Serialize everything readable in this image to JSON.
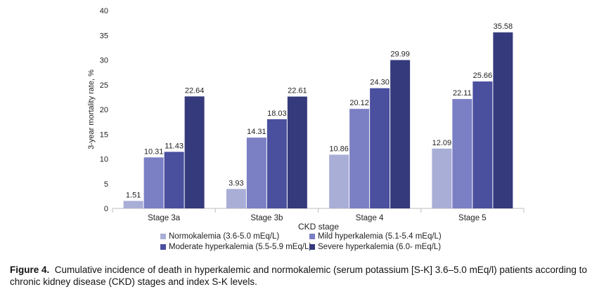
{
  "chart_data": {
    "type": "bar",
    "xlabel": "CKD stage",
    "ylabel": "3-year mortality rate, %",
    "ylim": [
      0,
      40
    ],
    "yticks": [
      0,
      5,
      10,
      15,
      20,
      25,
      30,
      35,
      40
    ],
    "grid": false,
    "legend_position": "bottom",
    "categories": [
      "Stage 3a",
      "Stage 3b",
      "Stage 4",
      "Stage 5"
    ],
    "series": [
      {
        "name": "Normokalemia (3.6-5.0 mEq/L)",
        "color": "#a9aed6",
        "values": [
          1.51,
          3.93,
          10.86,
          12.09
        ],
        "labels": [
          "1.51",
          "3.93",
          "10.86",
          "12.09"
        ]
      },
      {
        "name": "Mild hyperkalemia (5.1-5.4 mEq/L)",
        "color": "#7b7fc4",
        "values": [
          10.31,
          14.31,
          20.12,
          22.11
        ],
        "labels": [
          "10.31",
          "14.31",
          "20.12",
          "22.11"
        ]
      },
      {
        "name": "Moderate hyperkalemia (5.5-5.9 mEq/L)",
        "color": "#4a4f9e",
        "values": [
          11.43,
          18.03,
          24.3,
          25.66
        ],
        "labels": [
          "11.43",
          "18.03",
          "24.30",
          "25.66"
        ]
      },
      {
        "name": "Severe hyperkalemia (6.0- mEq/L)",
        "color": "#353a7c",
        "values": [
          22.64,
          22.61,
          29.99,
          35.58
        ],
        "labels": [
          "22.64",
          "22.61",
          "29.99",
          "35.58"
        ]
      }
    ]
  },
  "caption": {
    "figure_label": "Figure 4.",
    "text": "Cumulative incidence of death in hyperkalemic and normokalemic (serum potassium [S-K] 3.6–5.0 mEq/l) patients according to chronic kidney disease (CKD) stages and index S-K levels."
  }
}
